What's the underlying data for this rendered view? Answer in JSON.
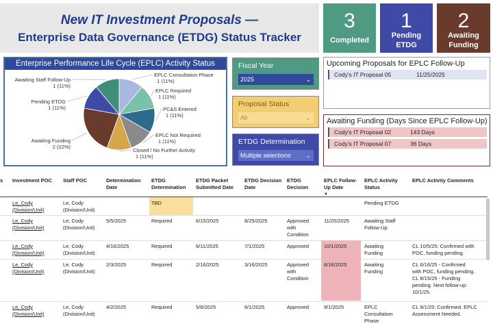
{
  "header": {
    "title_line1": "New IT Investment Proposals —",
    "title_line2": "Enterprise Data Governance (ETDG) Status Tracker"
  },
  "kpis": [
    {
      "value": "3",
      "label": "Completed",
      "color": "#4e9a83"
    },
    {
      "value": "1",
      "label_line1": "Pending",
      "label_line2": "ETDG",
      "color": "#3e4aa6"
    },
    {
      "value": "2",
      "label_line1": "Awaiting",
      "label_line2": "Funding",
      "color": "#6a3a2c"
    }
  ],
  "pie": {
    "title": "Enterprise Performance Life Cycle (EPLC) Activity Status",
    "slices": [
      {
        "line1": "EPLC Consultation Phase",
        "line2": "1 (11%)",
        "value": 1,
        "color": "#a8b8e0"
      },
      {
        "line1": "EPLC Required",
        "line2": "1 (11%)",
        "value": 1,
        "color": "#7bc0a8"
      },
      {
        "line1": "PC&S Entered",
        "line2": "1 (11%)",
        "value": 1,
        "color": "#2e6a8e"
      },
      {
        "line1": "EPLC Not Required",
        "line2": "1 (11%)",
        "value": 1,
        "color": "#8a8a8a"
      },
      {
        "line1": "Closed / No Further Activity",
        "line2": "1 (11%)",
        "value": 1,
        "color": "#d4a84a"
      },
      {
        "line1": "Awaiting Funding",
        "line2": "2 (22%)",
        "value": 2,
        "color": "#6a3a2c"
      },
      {
        "line1": "Pending ETDG",
        "line2": "1 (11%)",
        "value": 1,
        "color": "#3e4aa6"
      },
      {
        "line1": "Awaiting Staff Follow-Up",
        "line2": "1 (11%)",
        "value": 1,
        "color": "#3f8f78"
      }
    ]
  },
  "filters": {
    "fiscal_year": {
      "label": "Fiscal Year",
      "value": "2025"
    },
    "proposal_status": {
      "label": "Proposal Status",
      "value": "All"
    },
    "etdg_determination": {
      "label": "ETDG Determination",
      "value": "Multiple selections"
    }
  },
  "upcoming": {
    "title": "Upcoming Proposals for EPLC Follow-Up",
    "rows": [
      {
        "name": "Cody's IT Proposal 05",
        "date": "11/25/2025"
      }
    ]
  },
  "awaiting_funding": {
    "title": "Awaiting Funding (Days Since EPLC Follow-Up)",
    "rows": [
      {
        "name": "Cody's IT Proposal 02",
        "days": "143 Days"
      },
      {
        "name": "Cody's IT Proposal 07",
        "days": "36 Days"
      }
    ]
  },
  "table": {
    "headers": {
      "first": "s",
      "investment_poc": "Investment POC",
      "staff_poc": "Staff POC",
      "determination_date_1": "Determination",
      "determination_date_2": "Date",
      "etdg_determination_1": "ETDG",
      "etdg_determination_2": "Determination",
      "packet_1": "ETDG Packet",
      "packet_2": "Submitted Date",
      "decision_date": "ETDG Decision Date",
      "decision_1": "ETDG",
      "decision_2": "Decision",
      "followup_1": "EPLC Follow-",
      "followup_2": "Up Date",
      "activity_1": "EPLC Activity",
      "activity_2": "Status",
      "comments": "EPLC Activity Comments",
      "sort_arrow": "▼"
    },
    "rows": [
      {
        "inv1": "Le, Cody",
        "inv2": "(Division/Unit)",
        "staff1": "Le, Cody",
        "staff2": "(Division/Unit)",
        "det_date": "",
        "etdg": "TBD",
        "packet": "",
        "decision_date": "",
        "decision1": "",
        "decision2": "",
        "decision3": "",
        "followup": "",
        "activity1": "Pending ETDG",
        "activity2": "",
        "activity3": "",
        "c1": "",
        "c2": "",
        "c3": "",
        "c4": ""
      },
      {
        "inv1": "Le, Cody",
        "inv2": "(Division/Unit)",
        "staff1": "Le, Cody",
        "staff2": "(Division/Unit)",
        "det_date": "5/5/2025",
        "etdg": "Required",
        "packet": "6/15/2025",
        "decision_date": "8/25/2025",
        "decision1": "Approved",
        "decision2": "with",
        "decision3": "Condition",
        "followup": "11/25/2025",
        "activity1": "Awaiting Staff",
        "activity2": "Follow-Up",
        "activity3": "",
        "c1": "",
        "c2": "",
        "c3": "",
        "c4": ""
      },
      {
        "inv1": "Le, Cody",
        "inv2": "(Division/Unit)",
        "staff1": "Le, Cody",
        "staff2": "(Division/Unit)",
        "det_date": "4/16/2025",
        "etdg": "Required",
        "packet": "6/11/2025",
        "decision_date": "7/1/2025",
        "decision1": "Approved",
        "decision2": "",
        "decision3": "",
        "followup": "10/1/2025",
        "activity1": "Awaiting",
        "activity2": "Funding",
        "activity3": "",
        "c1": "CL 10/5/25: Confirmed with",
        "c2": "POC, funding pending.",
        "c3": "",
        "c4": ""
      },
      {
        "inv1": "Le, Cody",
        "inv2": "(Division/Unit)",
        "staff1": "Le, Cody",
        "staff2": "(Division/Unit)",
        "det_date": "2/3/2025",
        "etdg": "Required",
        "packet": "2/16/2025",
        "decision_date": "3/16/2025",
        "decision1": "Approved",
        "decision2": "with",
        "decision3": "Condition",
        "followup": "6/16/2025",
        "activity1": "Awaiting",
        "activity2": "Funding",
        "activity3": "",
        "c1": "CL 6/16/25 - Confirmed",
        "c2": "with POC, funding pending.",
        "c3": "CL 8/15/25 - Funding",
        "c4": "pending. Next follow-up: 10/1/25."
      },
      {
        "inv1": "Le, Cody",
        "inv2": "(Division/Unit)",
        "staff1": "Le, Cody",
        "staff2": "(Division/Unit)",
        "det_date": "4/2/2025",
        "etdg": "Required",
        "packet": "5/6/2025",
        "decision_date": "6/1/2025",
        "decision1": "Approved",
        "decision2": "",
        "decision3": "",
        "followup": "9/1/2025",
        "activity1": "EPLC",
        "activity2": "Consultation",
        "activity3": "Phase",
        "c1": "CL 9/1/25: Confirmed. EPLC",
        "c2": "Assessment Needed.",
        "c3": "",
        "c4": ""
      }
    ]
  }
}
